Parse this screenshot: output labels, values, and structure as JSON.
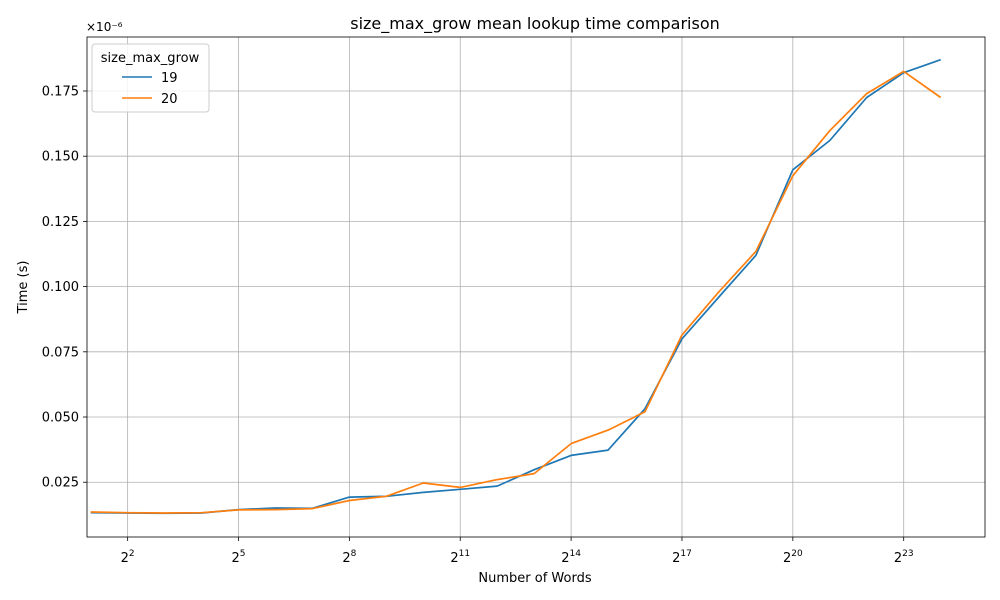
{
  "chart_data": {
    "type": "line",
    "title": "size_max_grow mean lookup time comparison",
    "xlabel": "Number of Words",
    "ylabel": "Time (s)",
    "y_multiplier_label": "×10⁻⁶",
    "x_scale": "log2",
    "xlim_exponent": [
      0.9,
      25.2
    ],
    "ylim": [
      0.004,
      0.1957
    ],
    "grid": true,
    "legend": {
      "title": "size_max_grow",
      "location": "top-left"
    },
    "x_ticks": [
      {
        "exp": 2,
        "base": "2",
        "sup": "2"
      },
      {
        "exp": 5,
        "base": "2",
        "sup": "5"
      },
      {
        "exp": 8,
        "base": "2",
        "sup": "8"
      },
      {
        "exp": 11,
        "base": "2",
        "sup": "11"
      },
      {
        "exp": 14,
        "base": "2",
        "sup": "14"
      },
      {
        "exp": 17,
        "base": "2",
        "sup": "17"
      },
      {
        "exp": 20,
        "base": "2",
        "sup": "20"
      },
      {
        "exp": 23,
        "base": "2",
        "sup": "23"
      }
    ],
    "y_ticks": [
      {
        "value": 0.025,
        "label": "0.025"
      },
      {
        "value": 0.05,
        "label": "0.050"
      },
      {
        "value": 0.075,
        "label": "0.075"
      },
      {
        "value": 0.1,
        "label": "0.100"
      },
      {
        "value": 0.125,
        "label": "0.125"
      },
      {
        "value": 0.15,
        "label": "0.150"
      },
      {
        "value": 0.175,
        "label": "0.175"
      }
    ],
    "x_exponents": [
      1,
      2,
      3,
      4,
      5,
      6,
      7,
      8,
      9,
      10,
      11,
      12,
      13,
      14,
      15,
      16,
      17,
      18,
      19,
      20,
      21,
      22,
      23,
      24
    ],
    "series": [
      {
        "name": "19",
        "color": "#1f77b4",
        "values": [
          0.0133,
          0.0132,
          0.0131,
          0.0132,
          0.0145,
          0.0151,
          0.015,
          0.0193,
          0.0196,
          0.0211,
          0.0223,
          0.0235,
          0.0298,
          0.0353,
          0.0373,
          0.0532,
          0.08,
          0.096,
          0.112,
          0.1448,
          0.156,
          0.1725,
          0.182,
          0.187
        ]
      },
      {
        "name": "20",
        "color": "#ff7f0e",
        "values": [
          0.0136,
          0.0133,
          0.0132,
          0.0133,
          0.0144,
          0.0145,
          0.0149,
          0.018,
          0.0196,
          0.0247,
          0.023,
          0.026,
          0.0283,
          0.0398,
          0.045,
          0.052,
          0.0815,
          0.098,
          0.1135,
          0.1425,
          0.1598,
          0.174,
          0.1825,
          0.1725
        ]
      }
    ]
  }
}
